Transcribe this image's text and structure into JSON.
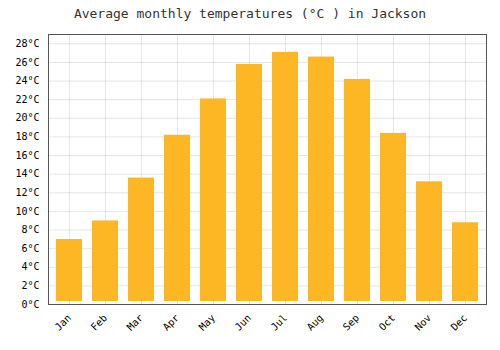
{
  "chart_data": {
    "type": "bar",
    "title": "Average monthly temperatures (°C ) in Jackson",
    "categories": [
      "Jan",
      "Feb",
      "Mar",
      "Apr",
      "May",
      "Jun",
      "Jul",
      "Aug",
      "Sep",
      "Oct",
      "Nov",
      "Dec"
    ],
    "values": [
      7.3,
      9.3,
      13.9,
      18.5,
      22.4,
      26.1,
      27.4,
      26.9,
      24.5,
      18.7,
      13.5,
      9.1
    ],
    "color": "#FDB624",
    "ylim": [
      0,
      29
    ],
    "yticks": [
      {
        "value": 0,
        "label": "0°C"
      },
      {
        "value": 2,
        "label": "2°C"
      },
      {
        "value": 4,
        "label": "4°C"
      },
      {
        "value": 6,
        "label": "6°C"
      },
      {
        "value": 8,
        "label": "8°C"
      },
      {
        "value": 10,
        "label": "10°C"
      },
      {
        "value": 12,
        "label": "12°C"
      },
      {
        "value": 14,
        "label": "14°C"
      },
      {
        "value": 16,
        "label": "16°C"
      },
      {
        "value": 18,
        "label": "18°C"
      },
      {
        "value": 20,
        "label": "20°C"
      },
      {
        "value": 22,
        "label": "22°C"
      },
      {
        "value": 24,
        "label": "24°C"
      },
      {
        "value": 26,
        "label": "26°C"
      },
      {
        "value": 28,
        "label": "28°C"
      }
    ],
    "grid": true
  }
}
